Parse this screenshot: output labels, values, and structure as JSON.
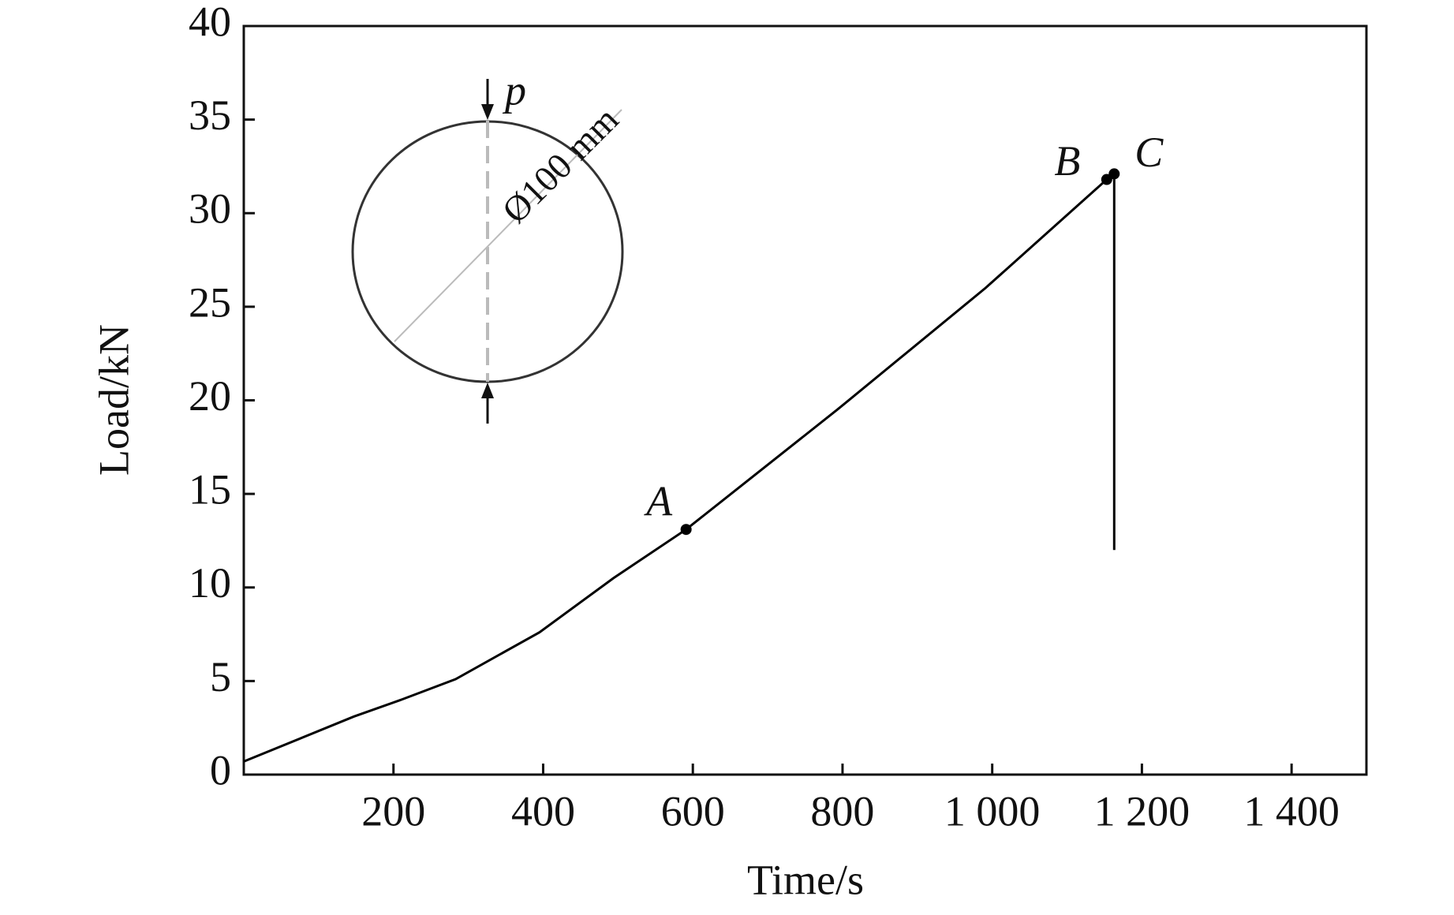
{
  "chart_data": {
    "type": "line",
    "x_label": "Time/s",
    "y_label": "Load/kN",
    "x": [
      0,
      147,
      209,
      283,
      395,
      494,
      591,
      793,
      991,
      1153,
      1163,
      1163
    ],
    "values": [
      0.7,
      3.1,
      3.98,
      5.1,
      7.6,
      10.5,
      13.1,
      19.5,
      26,
      31.8,
      32.1,
      12
    ],
    "color": "#000000",
    "points": [
      {
        "label": "A",
        "x": 591,
        "y": 13.1
      },
      {
        "label": "B",
        "x": 1153,
        "y": 31.8
      },
      {
        "label": "C",
        "x": 1163,
        "y": 32.1
      }
    ],
    "inset": {
      "load_label": "p",
      "diameter_label": "Ø100 mm"
    },
    "xlim": [
      0,
      1500
    ],
    "ylim": [
      0,
      40
    ],
    "xticks": [
      200,
      400,
      600,
      800,
      {
        "value": 1000,
        "label": "1 000"
      },
      {
        "value": 1200,
        "label": "1 200"
      },
      {
        "value": 1400,
        "label": "1 400"
      }
    ],
    "yticks": [
      0,
      5,
      10,
      15,
      20,
      25,
      30,
      35,
      40
    ]
  }
}
